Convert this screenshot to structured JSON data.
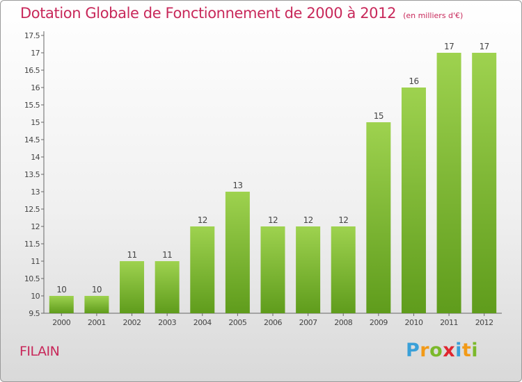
{
  "title": "Dotation Globale de Fonctionnement de 2000 à 2012",
  "subtitle": "(en milliers d'€)",
  "commune": "FILAIN",
  "logo": {
    "letters": [
      "P",
      "r",
      "o",
      "x",
      "i",
      "t",
      "i"
    ],
    "colors": [
      "#3aa0d8",
      "#f29a17",
      "#7bb92b",
      "#e0262f",
      "#3aa0d8",
      "#f29a17",
      "#7bb92b"
    ]
  },
  "chart_data": {
    "type": "bar",
    "categories": [
      "2000",
      "2001",
      "2002",
      "2003",
      "2004",
      "2005",
      "2006",
      "2007",
      "2008",
      "2009",
      "2010",
      "2011",
      "2012"
    ],
    "values": [
      10,
      10,
      11,
      11,
      12,
      13,
      12,
      12,
      12,
      15,
      16,
      17,
      17
    ],
    "data_labels": [
      "10",
      "10",
      "11",
      "11",
      "12",
      "13",
      "12",
      "12",
      "12",
      "15",
      "16",
      "17",
      "17"
    ],
    "yticks": [
      "9.5",
      "10",
      "10.5",
      "11",
      "11.5",
      "12",
      "12.5",
      "13",
      "13.5",
      "14",
      "14.5",
      "15",
      "15.5",
      "16",
      "16.5",
      "17",
      "17.5"
    ],
    "ylim": [
      9.5,
      17.5
    ],
    "grid": false,
    "bar_color": "#7ab830"
  }
}
